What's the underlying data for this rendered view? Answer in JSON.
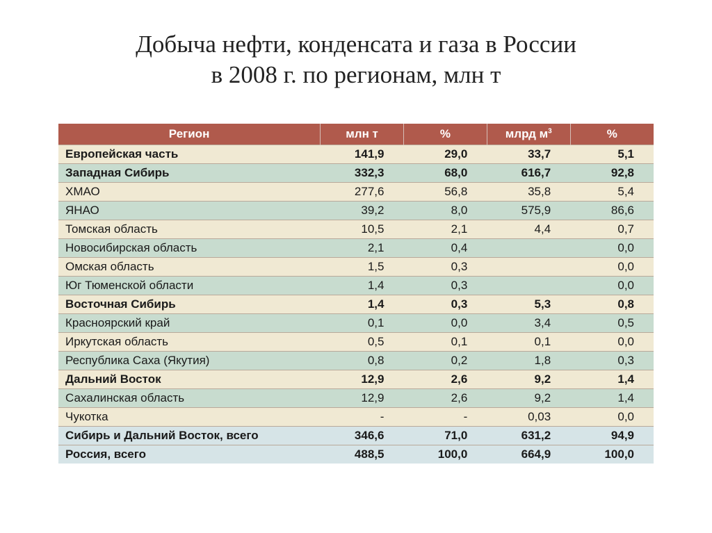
{
  "title_line1": "Добыча нефти, конденсата и газа в России",
  "title_line2": "в 2008 г. по регионам, млн т",
  "columns": {
    "region": "Регион",
    "mln_t": "млн т",
    "pct1": "%",
    "mlrd_m3_prefix": "млрд м",
    "mlrd_m3_sup": "3",
    "pct2": "%"
  },
  "table": {
    "header_bg": "#b05a4c",
    "header_color": "#ffffff",
    "row_a_bg": "#f0e9d3",
    "row_b_bg": "#c8dccf",
    "tint_bg": "#d6e4e7",
    "border_color": "#b9a99a",
    "font_size": 17,
    "col_widths_pct": [
      44,
      14,
      14,
      14,
      14
    ]
  },
  "rows": [
    {
      "region": "Европейская часть",
      "mln_t": "141,9",
      "pct1": "29,0",
      "mlrd": "33,7",
      "pct2": "5,1",
      "bold": true,
      "cls": "row-a"
    },
    {
      "region": "Западная Сибирь",
      "mln_t": "332,3",
      "pct1": "68,0",
      "mlrd": "616,7",
      "pct2": "92,8",
      "bold": true,
      "cls": "row-b"
    },
    {
      "region": "ХМАО",
      "mln_t": "277,6",
      "pct1": "56,8",
      "mlrd": "35,8",
      "pct2": "5,4",
      "bold": false,
      "cls": "row-a"
    },
    {
      "region": "ЯНАО",
      "mln_t": "39,2",
      "pct1": "8,0",
      "mlrd": "575,9",
      "pct2": "86,6",
      "bold": false,
      "cls": "row-b"
    },
    {
      "region": "Томская область",
      "mln_t": "10,5",
      "pct1": "2,1",
      "mlrd": "4,4",
      "pct2": "0,7",
      "bold": false,
      "cls": "row-a"
    },
    {
      "region": "Новосибирская область",
      "mln_t": "2,1",
      "pct1": "0,4",
      "mlrd": "",
      "pct2": "0,0",
      "bold": false,
      "cls": "row-b"
    },
    {
      "region": "Омская область",
      "mln_t": "1,5",
      "pct1": "0,3",
      "mlrd": "",
      "pct2": "0,0",
      "bold": false,
      "cls": "row-a"
    },
    {
      "region": "Юг Тюменской области",
      "mln_t": "1,4",
      "pct1": "0,3",
      "mlrd": "",
      "pct2": "0,0",
      "bold": false,
      "cls": "row-b"
    },
    {
      "region": "Восточная Сибирь",
      "mln_t": "1,4",
      "pct1": "0,3",
      "mlrd": "5,3",
      "pct2": "0,8",
      "bold": true,
      "cls": "row-a"
    },
    {
      "region": "Красноярский край",
      "mln_t": "0,1",
      "pct1": "0,0",
      "mlrd": "3,4",
      "pct2": "0,5",
      "bold": false,
      "cls": "row-b"
    },
    {
      "region": "Иркутская область",
      "mln_t": "0,5",
      "pct1": "0,1",
      "mlrd": "0,1",
      "pct2": "0,0",
      "bold": false,
      "cls": "row-a"
    },
    {
      "region": "Республика Саха (Якутия)",
      "mln_t": "0,8",
      "pct1": "0,2",
      "mlrd": "1,8",
      "pct2": "0,3",
      "bold": false,
      "cls": "row-b"
    },
    {
      "region": "Дальний Восток",
      "mln_t": "12,9",
      "pct1": "2,6",
      "mlrd": "9,2",
      "pct2": "1,4",
      "bold": true,
      "cls": "row-a"
    },
    {
      "region": "Сахалинская область",
      "mln_t": "12,9",
      "pct1": "2,6",
      "mlrd": "9,2",
      "pct2": "1,4",
      "bold": false,
      "cls": "row-b"
    },
    {
      "region": "Чукотка",
      "mln_t": "-",
      "pct1": "-",
      "mlrd": "0,03",
      "pct2": "0,0",
      "bold": false,
      "cls": "row-a"
    },
    {
      "region": "Сибирь и Дальний Восток, всего",
      "mln_t": "346,6",
      "pct1": "71,0",
      "mlrd": "631,2",
      "pct2": "94,9",
      "bold": true,
      "cls": "tint"
    },
    {
      "region": "Россия, всего",
      "mln_t": "488,5",
      "pct1": "100,0",
      "mlrd": "664,9",
      "pct2": "100,0",
      "bold": true,
      "cls": "tint"
    }
  ]
}
